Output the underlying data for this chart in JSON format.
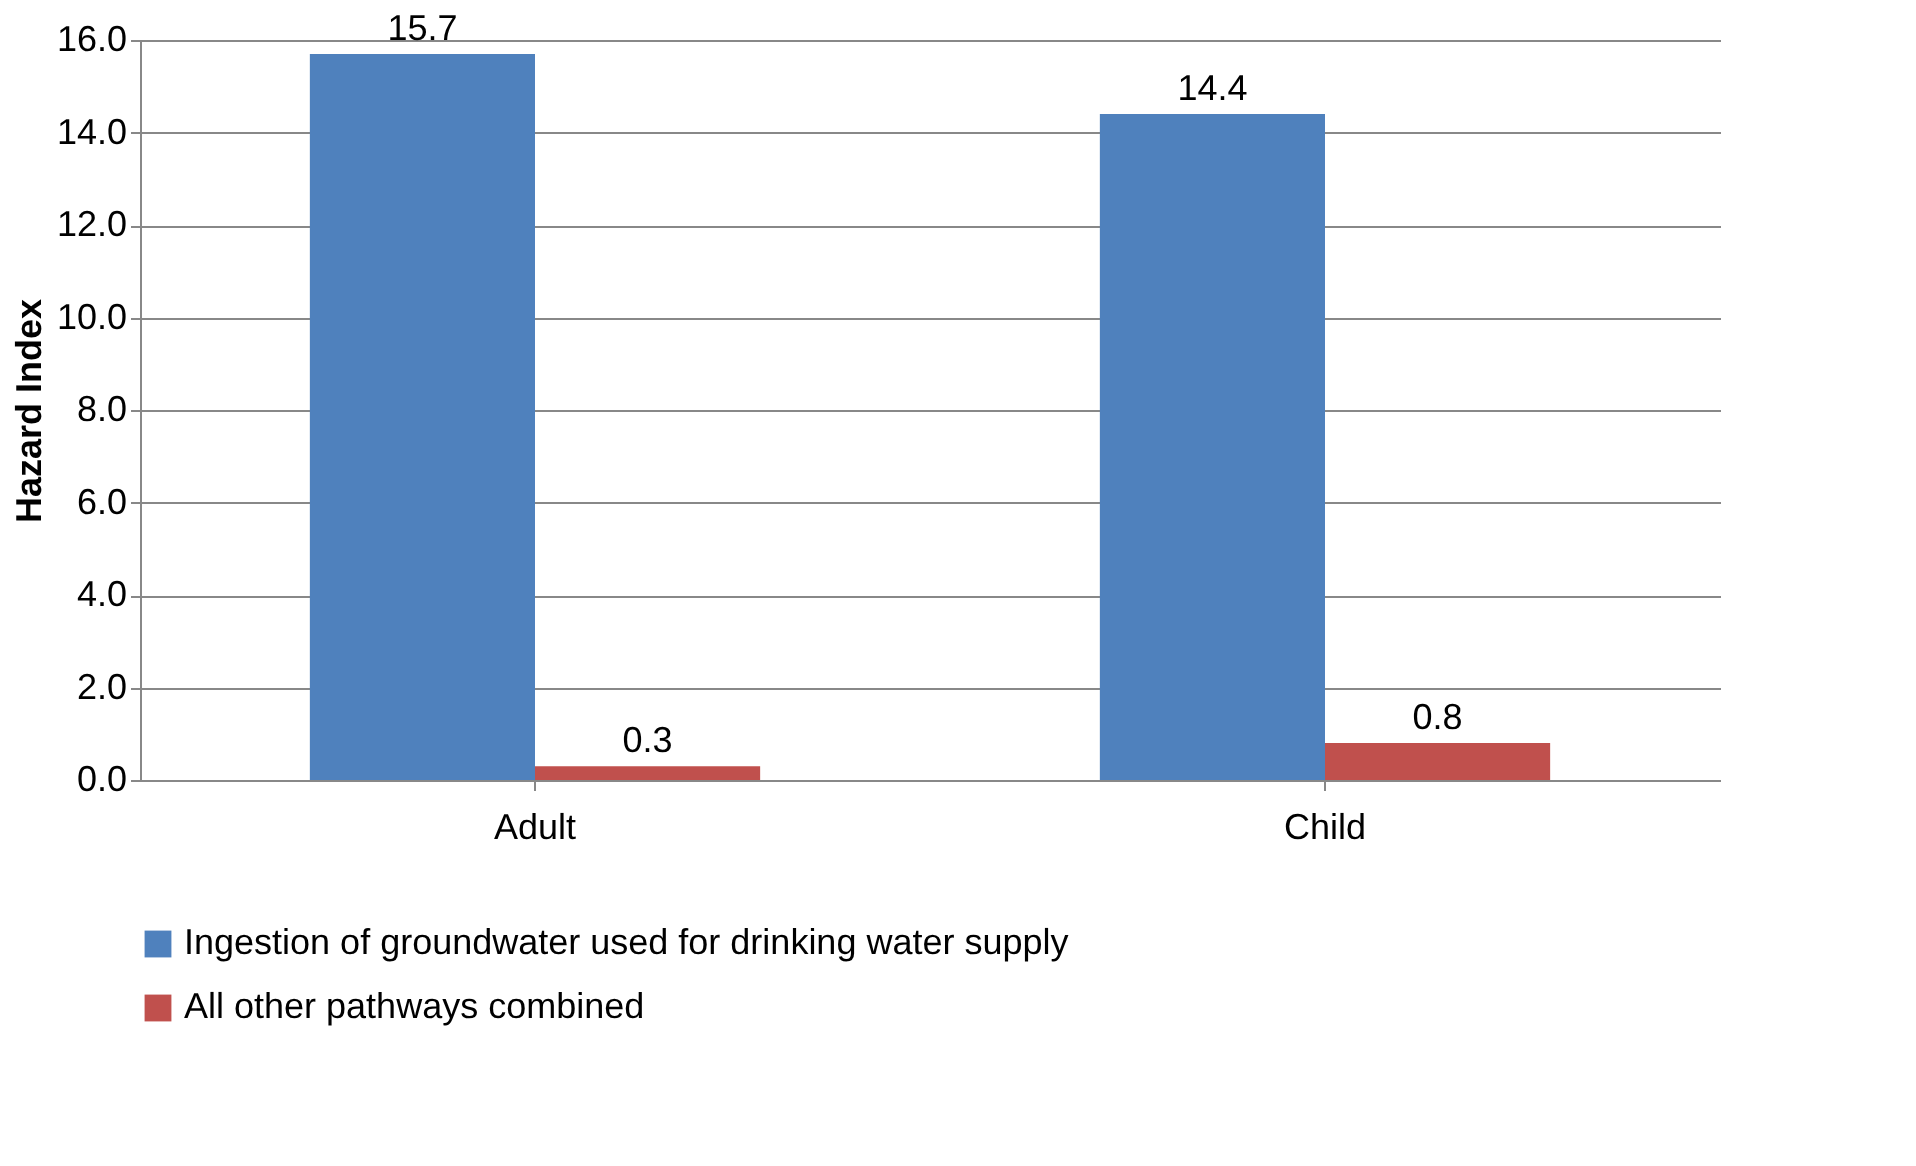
{
  "chart_data": {
    "type": "bar",
    "ylabel": "Hazard Index",
    "categories": [
      "Adult",
      "Child"
    ],
    "series": [
      {
        "name": "Ingestion of groundwater used for drinking water supply",
        "color": "#4f81bd",
        "values": [
          15.7,
          14.4
        ]
      },
      {
        "name": "All other pathways combined",
        "color": "#c0504d",
        "values": [
          0.3,
          0.8
        ]
      }
    ],
    "ylim": [
      0,
      16
    ],
    "yticks": [
      {
        "value": 0,
        "label": "0.0"
      },
      {
        "value": 2,
        "label": "2.0"
      },
      {
        "value": 4,
        "label": "4.0"
      },
      {
        "value": 6,
        "label": "6.0"
      },
      {
        "value": 8,
        "label": "8.0"
      },
      {
        "value": 10,
        "label": "10.0"
      },
      {
        "value": 12,
        "label": "12.0"
      },
      {
        "value": 14,
        "label": "14.0"
      },
      {
        "value": 16,
        "label": "16.0"
      }
    ],
    "grid": "y",
    "legend": "bottom",
    "data_labels": true
  }
}
